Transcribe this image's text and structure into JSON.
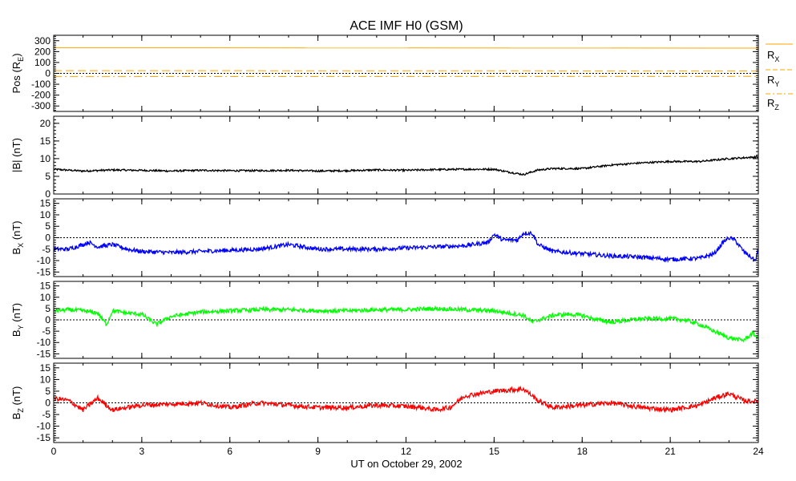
{
  "chart_data": {
    "type": "line",
    "title": "ACE IMF H0 (GSM)",
    "xlabel": "UT on October 29, 2002",
    "xlim": [
      0,
      24
    ],
    "xticks": [
      0,
      3,
      6,
      9,
      12,
      15,
      18,
      21,
      24
    ],
    "xtick_labels": [
      "0",
      "3",
      "6",
      "9",
      "12",
      "15",
      "18",
      "21",
      "24"
    ],
    "panels": [
      {
        "id": "pos",
        "ylabel_main": "Pos (R",
        "ylabel_sub": "E",
        "ylabel_end": ")",
        "ylim": [
          -350,
          350
        ],
        "yticks": [
          -300,
          -200,
          -100,
          0,
          100,
          200,
          300
        ],
        "ytick_labels": [
          "-300",
          "-200",
          "-100",
          "0",
          "100",
          "200",
          "300"
        ],
        "zero_line": true,
        "legend": [
          {
            "main": "R",
            "sub": "X"
          },
          {
            "main": "R",
            "sub": "Y"
          },
          {
            "main": "R",
            "sub": "Z"
          }
        ],
        "series": [
          {
            "name": "RX",
            "color": "#ffa500",
            "dash": "solid",
            "x": [
              0,
              24
            ],
            "y": [
              235,
              232
            ]
          },
          {
            "name": "RY",
            "color": "#ffa500",
            "dash": "dashed",
            "x": [
              0,
              24
            ],
            "y": [
              25,
              23
            ]
          },
          {
            "name": "RZ",
            "color": "#ffa500",
            "dash": "dashdot",
            "x": [
              0,
              24
            ],
            "y": [
              -30,
              -28
            ]
          }
        ]
      },
      {
        "id": "btotal",
        "ylabel_main": "|B| (nT)",
        "ylim": [
          0,
          22
        ],
        "yticks": [
          0,
          5,
          10,
          15,
          20
        ],
        "ytick_labels": [
          "0",
          "5",
          "10",
          "15",
          "20"
        ],
        "zero_line": false,
        "series": [
          {
            "name": "|B|",
            "color": "#000000",
            "noise": 0.25,
            "x": [
              0,
              1,
              2,
              3,
              4,
              5,
              6,
              7,
              8,
              9,
              10,
              11,
              12,
              13,
              14,
              15,
              15.5,
              16,
              16.5,
              17,
              18,
              19,
              20,
              21,
              22,
              23,
              24
            ],
            "y": [
              7,
              6.5,
              6.8,
              6.7,
              6.5,
              6.7,
              6.6,
              6.6,
              6.7,
              6.5,
              6.6,
              6.8,
              6.7,
              6.9,
              7,
              7,
              6.2,
              5.5,
              6.8,
              7.2,
              7.2,
              8.2,
              8.8,
              9.2,
              9.2,
              10,
              10.5
            ]
          }
        ]
      },
      {
        "id": "bx",
        "ylabel_main": "B",
        "ylabel_sub": "X",
        "ylabel_end": " (nT)",
        "ylim": [
          -17,
          17
        ],
        "yticks": [
          -15,
          -10,
          -5,
          0,
          5,
          10,
          15
        ],
        "ytick_labels": [
          "-15",
          "-10",
          "-5",
          "0",
          "5",
          "10",
          "15"
        ],
        "zero_line": true,
        "series": [
          {
            "name": "BX",
            "color": "#0000ff",
            "noise": 0.9,
            "x": [
              0,
              0.5,
              1,
              1.2,
              1.5,
              2,
              2.5,
              3,
              4,
              5,
              6,
              7,
              7.5,
              8,
              8.5,
              9,
              10,
              11,
              12,
              13,
              14,
              14.8,
              15,
              15.3,
              15.8,
              16,
              16.3,
              16.5,
              17,
              18,
              19,
              20,
              21,
              22,
              22.5,
              22.8,
              23,
              23.2,
              23.5,
              23.9,
              24
            ],
            "y": [
              -5,
              -5,
              -3,
              -2,
              -4,
              -3,
              -5,
              -6,
              -6.5,
              -6,
              -5.5,
              -5,
              -4,
              -3,
              -4,
              -5,
              -5,
              -5,
              -4.5,
              -4,
              -3.5,
              -2,
              1.5,
              -1,
              -1,
              2,
              2,
              -3,
              -6,
              -7,
              -8,
              -8.5,
              -9.5,
              -9,
              -7,
              -2,
              0,
              -1,
              -6,
              -10,
              -5
            ]
          }
        ]
      },
      {
        "id": "by",
        "ylabel_main": "B",
        "ylabel_sub": "Y",
        "ylabel_end": " (nT)",
        "ylim": [
          -17,
          17
        ],
        "yticks": [
          -15,
          -10,
          -5,
          0,
          5,
          10,
          15
        ],
        "ytick_labels": [
          "-15",
          "-10",
          "-5",
          "0",
          "5",
          "10",
          "15"
        ],
        "zero_line": true,
        "series": [
          {
            "name": "BY",
            "color": "#00ff00",
            "noise": 0.9,
            "x": [
              0,
              0.5,
              1,
              1.5,
              1.8,
              2,
              2.5,
              3,
              3.5,
              4,
              5,
              6,
              7,
              8,
              9,
              10,
              11,
              12,
              13,
              14,
              15,
              15.5,
              16,
              16.3,
              17,
              17.5,
              18,
              18.5,
              19,
              20,
              21,
              21.5,
              22,
              22.5,
              23,
              23.5,
              23.8,
              24
            ],
            "y": [
              4,
              4.5,
              4,
              3,
              -2,
              4,
              3,
              2.5,
              -2,
              1.5,
              3.5,
              4,
              4.5,
              4.5,
              4,
              4,
              4.5,
              4.5,
              5,
              4.5,
              4,
              3,
              2,
              -1,
              2,
              2.5,
              2,
              0,
              -1,
              0.5,
              0.5,
              0,
              -2,
              -5,
              -8,
              -9,
              -6,
              -8
            ]
          }
        ]
      },
      {
        "id": "bz",
        "ylabel_main": "B",
        "ylabel_sub": "Z",
        "ylabel_end": " (nT)",
        "ylim": [
          -17,
          17
        ],
        "yticks": [
          -15,
          -10,
          -5,
          0,
          5,
          10,
          15
        ],
        "ytick_labels": [
          "-15",
          "-10",
          "-5",
          "0",
          "5",
          "10",
          "15"
        ],
        "zero_line": true,
        "series": [
          {
            "name": "BZ",
            "color": "#ff0000",
            "noise": 1.0,
            "x": [
              0,
              0.5,
              1,
              1.5,
              2,
              3,
              4,
              5,
              6,
              7,
              8,
              9,
              10,
              11,
              12,
              12.5,
              13,
              13.5,
              14,
              15,
              16,
              16.5,
              17,
              18,
              19,
              20,
              21,
              22,
              22.5,
              23,
              23.5,
              24
            ],
            "y": [
              2,
              1,
              -3,
              2,
              -3,
              -1,
              -0.5,
              0,
              -2,
              0,
              -1,
              -2,
              -2,
              -1,
              -1.5,
              -2,
              -3,
              -2,
              3,
              5,
              6,
              1,
              -2,
              -1,
              0,
              -2,
              -3,
              -1,
              2,
              4,
              1,
              0.5
            ]
          }
        ]
      }
    ]
  }
}
